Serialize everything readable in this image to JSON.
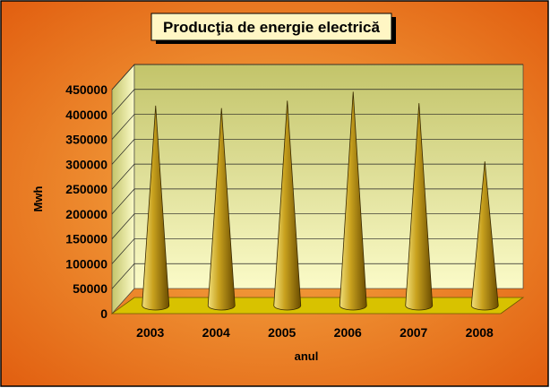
{
  "chart_data": {
    "type": "bar",
    "bar_shape": "cone",
    "three_d": true,
    "title": "Producţia de energie electrică",
    "xlabel": "anul",
    "ylabel": "Mwh",
    "categories": [
      "2003",
      "2004",
      "2005",
      "2006",
      "2007",
      "2008"
    ],
    "series": [
      {
        "values": [
          390000,
          385000,
          400000,
          418000,
          395000,
          278000
        ]
      }
    ],
    "ylim": [
      0,
      450000
    ],
    "yticks": [
      "0",
      "50000",
      "100000",
      "150000",
      "200000",
      "250000",
      "300000",
      "350000",
      "400000",
      "450000"
    ],
    "grid": true,
    "legend": "none",
    "colors": {
      "background_light": "#f7b24a",
      "background_dark": "#e0590c",
      "wall_top": "#c3c46a",
      "wall_bottom": "#fbfbc8",
      "floor": "#d8c200",
      "cone_light": "#f1e07c",
      "cone_mid": "#c9a21e",
      "cone_dark": "#6a4c00",
      "title_box": "#fff6c4"
    }
  }
}
